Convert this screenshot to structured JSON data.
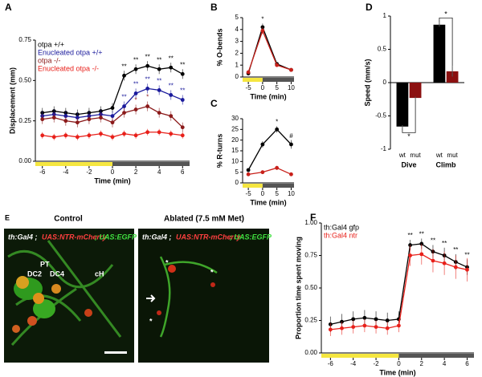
{
  "chart_data": [
    {
      "panel": "A",
      "type": "line",
      "xlabel": "Time (min)",
      "ylabel": "Displacement (mm)",
      "xlim": [
        -6.6,
        6.6
      ],
      "xticks": [
        -6,
        -4,
        -2,
        0,
        2,
        4,
        6
      ],
      "ylim": [
        0,
        0.75
      ],
      "yticks": [
        {
          "value": 0,
          "label": "0.00"
        },
        {
          "value": 0.25,
          "label": "0.25"
        },
        {
          "value": 0.5,
          "label": "0.50"
        },
        {
          "value": 0.75,
          "label": "0.75"
        }
      ],
      "x": [
        -6,
        -5,
        -4,
        -3,
        -2,
        -1,
        0,
        1,
        2,
        3,
        4,
        5,
        6
      ],
      "series": [
        {
          "name": "otpa +/+",
          "color": "#000000",
          "values": [
            0.3,
            0.31,
            0.3,
            0.29,
            0.3,
            0.31,
            0.33,
            0.53,
            0.57,
            0.59,
            0.57,
            0.58,
            0.54
          ],
          "errors": [
            0.03,
            0.03,
            0.03,
            0.03,
            0.03,
            0.03,
            0.03,
            0.03,
            0.03,
            0.03,
            0.03,
            0.03,
            0.03
          ]
        },
        {
          "name": "Enucleated otpa +/+",
          "color": "#1a1a9c",
          "values": [
            0.28,
            0.29,
            0.28,
            0.27,
            0.28,
            0.29,
            0.28,
            0.34,
            0.42,
            0.45,
            0.44,
            0.41,
            0.38
          ],
          "errors": [
            0.03,
            0.03,
            0.03,
            0.03,
            0.03,
            0.03,
            0.03,
            0.03,
            0.03,
            0.03,
            0.03,
            0.03,
            0.03
          ]
        },
        {
          "name": "otpa -/-",
          "color": "#8b1a1a",
          "values": [
            0.26,
            0.27,
            0.25,
            0.24,
            0.26,
            0.27,
            0.24,
            0.3,
            0.32,
            0.34,
            0.3,
            0.28,
            0.21
          ],
          "errors": [
            0.03,
            0.03,
            0.03,
            0.03,
            0.03,
            0.03,
            0.03,
            0.03,
            0.03,
            0.03,
            0.03,
            0.03,
            0.03
          ]
        },
        {
          "name": "Enucleated otpa -/-",
          "color": "#e8201a",
          "values": [
            0.16,
            0.15,
            0.16,
            0.15,
            0.16,
            0.17,
            0.15,
            0.17,
            0.16,
            0.18,
            0.18,
            0.17,
            0.16
          ],
          "errors": [
            0.02,
            0.02,
            0.02,
            0.02,
            0.02,
            0.02,
            0.02,
            0.02,
            0.02,
            0.02,
            0.02,
            0.02,
            0.02
          ]
        }
      ],
      "annotations": [
        {
          "text": "**",
          "series": 0,
          "index": 7
        },
        {
          "text": "**",
          "series": 0,
          "index": 8
        },
        {
          "text": "**",
          "series": 0,
          "index": 9
        },
        {
          "text": "**",
          "series": 0,
          "index": 10
        },
        {
          "text": "**",
          "series": 0,
          "index": 11
        },
        {
          "text": "**",
          "series": 0,
          "index": 12
        },
        {
          "text": "**",
          "series": 1,
          "index": 7
        },
        {
          "text": "**",
          "series": 1,
          "index": 8
        },
        {
          "text": "**",
          "series": 1,
          "index": 9
        },
        {
          "text": "**",
          "series": 1,
          "index": 10
        },
        {
          "text": "**",
          "series": 1,
          "index": 11
        },
        {
          "text": "**",
          "series": 1,
          "index": 12
        },
        {
          "text": "*",
          "series": 2,
          "index": 8
        },
        {
          "text": "*",
          "series": 2,
          "index": 9
        }
      ]
    },
    {
      "panel": "B",
      "type": "line",
      "xlabel": "Time (min)",
      "ylabel": "% O-bends",
      "xlim": [
        -7,
        11
      ],
      "xticks": [
        -5,
        0,
        5,
        10
      ],
      "ylim": [
        0,
        5
      ],
      "yticks": [
        0,
        1,
        2,
        3,
        4,
        5
      ],
      "x": [
        -5,
        0,
        5,
        10
      ],
      "series": [
        {
          "color": "#000000",
          "values": [
            0.3,
            4.2,
            1.1,
            0.6
          ],
          "errors": [
            0.1,
            0.3,
            0.1,
            0.1
          ]
        },
        {
          "color": "#c8201a",
          "values": [
            0.4,
            3.9,
            1.0,
            0.6
          ],
          "errors": [
            0.1,
            0.3,
            0.1,
            0.1
          ]
        }
      ],
      "annotations": [
        {
          "text": "*",
          "series": 0,
          "index": 1
        }
      ]
    },
    {
      "panel": "C",
      "type": "line",
      "xlabel": "Time (min)",
      "ylabel": "% R-turns",
      "xlim": [
        -7,
        11
      ],
      "xticks": [
        -5,
        0,
        5,
        10
      ],
      "ylim": [
        0,
        30
      ],
      "yticks": [
        0,
        5,
        10,
        15,
        20,
        25,
        30
      ],
      "x": [
        -5,
        0,
        5,
        10
      ],
      "series": [
        {
          "color": "#000000",
          "values": [
            6,
            18,
            25,
            18
          ],
          "errors": [
            0.5,
            1.5,
            1.5,
            2
          ]
        },
        {
          "color": "#c8201a",
          "values": [
            4,
            5,
            7,
            4
          ],
          "errors": [
            0.5,
            0.5,
            1,
            0.5
          ]
        }
      ],
      "annotations": [
        {
          "text": "*",
          "series": 0,
          "index": 2
        },
        {
          "text": "#",
          "series": 0,
          "index": 3
        }
      ]
    },
    {
      "panel": "D",
      "type": "bar",
      "ylabel": "Speed (mm/s)",
      "ylim": [
        -1,
        1
      ],
      "yticks": [
        -1,
        -0.5,
        0,
        0.5,
        1
      ],
      "categories": [
        "Dive",
        "Climb"
      ],
      "series": [
        {
          "name": "wt",
          "color": "#000000",
          "values": [
            -0.66,
            0.87
          ],
          "errors": [
            0.02,
            0.03
          ]
        },
        {
          "name": "mut",
          "color": "#8b1010",
          "values": [
            -0.23,
            0.17
          ],
          "errors": [
            0.02,
            0.08
          ]
        }
      ],
      "annotations": [
        {
          "text": "*",
          "category": 0
        },
        {
          "text": "*",
          "category": 1
        }
      ]
    },
    {
      "panel": "F",
      "type": "line",
      "xlabel": "Time (min)",
      "ylabel": "Proportion time spent moving",
      "xlim": [
        -6.8,
        6.6
      ],
      "xticks": [
        -6,
        -4,
        -2,
        0,
        2,
        4,
        6
      ],
      "ylim": [
        0,
        1
      ],
      "yticks": [
        {
          "value": 0,
          "label": "0.00"
        },
        {
          "value": 0.25,
          "label": "0.25"
        },
        {
          "value": 0.5,
          "label": "0.50"
        },
        {
          "value": 0.75,
          "label": "0.75"
        },
        {
          "value": 1,
          "label": "1.00"
        }
      ],
      "x": [
        -6,
        -5,
        -4,
        -3,
        -2,
        -1,
        0,
        1,
        2,
        3,
        4,
        5,
        6
      ],
      "series": [
        {
          "name": "th:Gal4 gfp",
          "color": "#000000",
          "values": [
            0.22,
            0.24,
            0.26,
            0.27,
            0.26,
            0.25,
            0.26,
            0.83,
            0.84,
            0.78,
            0.75,
            0.7,
            0.66
          ],
          "errors": [
            0.06,
            0.06,
            0.06,
            0.06,
            0.06,
            0.06,
            0.06,
            0.04,
            0.04,
            0.05,
            0.06,
            0.06,
            0.06
          ]
        },
        {
          "name": "th:Gal4 ntr",
          "color": "#e8201a",
          "values": [
            0.18,
            0.19,
            0.2,
            0.21,
            0.2,
            0.19,
            0.21,
            0.75,
            0.76,
            0.71,
            0.69,
            0.66,
            0.64
          ],
          "errors": [
            0.05,
            0.05,
            0.05,
            0.05,
            0.05,
            0.05,
            0.05,
            0.08,
            0.08,
            0.09,
            0.09,
            0.09,
            0.09
          ]
        }
      ],
      "annotations": [
        {
          "text": "**",
          "series": 0,
          "index": 7
        },
        {
          "text": "**",
          "series": 0,
          "index": 8
        },
        {
          "text": "**",
          "series": 0,
          "index": 9
        },
        {
          "text": "**",
          "series": 0,
          "index": 10
        },
        {
          "text": "**",
          "series": 0,
          "index": 11
        },
        {
          "text": "**",
          "series": 0,
          "index": 12
        }
      ]
    }
  ],
  "panel_e": {
    "panel": "E",
    "control": {
      "title": "Control",
      "genotype": [
        "th:Gal4 ;",
        "UAS:NTR-mCherry",
        "; UAS:EGFP"
      ],
      "labels": [
        "DC2",
        "PT",
        "DC4",
        "cH"
      ]
    },
    "ablated": {
      "title": "Ablated (7.5 mM Met)",
      "genotype": [
        "th:Gal4 ;",
        "UAS:NTR-mCherry",
        "; UAS:EGFP"
      ],
      "labels": [
        "*",
        "*",
        "*"
      ]
    }
  }
}
